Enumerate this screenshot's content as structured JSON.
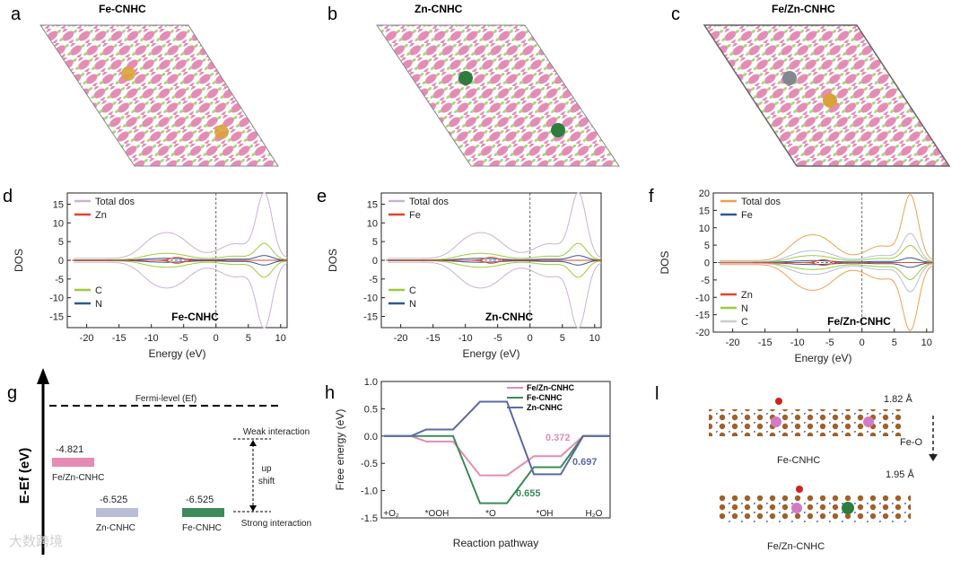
{
  "panels": {
    "a": {
      "label": "a",
      "title": "Fe-CNHC"
    },
    "b": {
      "label": "b",
      "title": "Zn-CNHC"
    },
    "c": {
      "label": "c",
      "title": "Fe/Zn-CNHC"
    },
    "l_label": "l",
    "l_top": "Fe-CNHC",
    "l_bottom": "Fe/Zn-CNHC",
    "l_dist1": "1.82 Å",
    "l_dist2": "1.95 Å",
    "l_feo": "Fe-O",
    "watermark": "大数跨境"
  },
  "chart_data": [
    {
      "id": "d",
      "type": "line",
      "panel": "d",
      "title": "Fe-CNHC",
      "xlabel": "Energy (eV)",
      "ylabel": "DOS",
      "xlim": [
        -23,
        11
      ],
      "ylim": [
        -18,
        18
      ],
      "xticks": [
        -20,
        -15,
        -10,
        -5,
        0,
        5,
        10
      ],
      "yticks": [
        -15,
        -10,
        -5,
        0,
        5,
        10,
        15
      ],
      "legend": [
        "Total dos",
        "Zn",
        "C",
        "N"
      ],
      "legend_colors": [
        "#c9b2d6",
        "#e0442b",
        "#9ccc3c",
        "#2f5a8c"
      ]
    },
    {
      "id": "e",
      "type": "line",
      "panel": "e",
      "title": "Zn-CNHC",
      "xlabel": "Energy (eV)",
      "ylabel": "DOS",
      "xlim": [
        -23,
        11
      ],
      "ylim": [
        -18,
        18
      ],
      "xticks": [
        -20,
        -15,
        -10,
        -5,
        0,
        5,
        10
      ],
      "yticks": [
        -15,
        -10,
        -5,
        0,
        5,
        10,
        15
      ],
      "legend": [
        "Total dos",
        "Fe",
        "C",
        "N"
      ],
      "legend_colors": [
        "#c9b2d6",
        "#e0442b",
        "#9ccc3c",
        "#2f5a8c"
      ]
    },
    {
      "id": "f",
      "type": "line",
      "panel": "f",
      "title": "Fe/Zn-CNHC",
      "xlabel": "Energy (eV)",
      "ylabel": "DOS",
      "xlim": [
        -23,
        11
      ],
      "ylim": [
        -20,
        20
      ],
      "xticks": [
        -20,
        -15,
        -10,
        -5,
        0,
        5,
        10
      ],
      "yticks": [
        -20,
        -15,
        -10,
        -5,
        0,
        5,
        10,
        15,
        20
      ],
      "legend": [
        "Total dos",
        "Fe",
        "Zn",
        "N",
        "C"
      ],
      "legend_colors": [
        "#f0a050",
        "#2f5a8c",
        "#e0442b",
        "#9ccc3c",
        "#cccccc"
      ]
    },
    {
      "id": "g",
      "type": "bar",
      "panel": "g",
      "ylabel": "E-Ef (eV)",
      "fermi_label": "Fermi-level (Ef)",
      "categories": [
        "Fe/Zn-CNHC",
        "Zn-CNHC",
        "Fe-CNHC"
      ],
      "values": [
        -4.821,
        -6.525,
        -6.525
      ],
      "value_labels": [
        "-4.821",
        "-6.525",
        "-6.525"
      ],
      "colors": [
        "#e58cb5",
        "#b9bdd6",
        "#3d8a5a"
      ],
      "annotations": {
        "weak": "Weak interaction",
        "strong": "Strong interaction",
        "shift": "up\nshift"
      }
    },
    {
      "id": "h",
      "type": "line",
      "panel": "h",
      "xlabel": "Reaction pathway",
      "ylabel": "Free energy (eV)",
      "ylim": [
        -1.5,
        1.0
      ],
      "yticks": [
        -1.5,
        -1.0,
        -0.5,
        0.0,
        0.5,
        1.0
      ],
      "ytick_labels": [
        "-1.5",
        "-1.0",
        "-0.5",
        "0.0",
        "0.5",
        "1.0"
      ],
      "categories": [
        "+O2",
        "*OOH",
        "*O",
        "*OH",
        "H2O"
      ],
      "series": [
        {
          "name": "Fe/Zn-CNHC",
          "color": "#e58cb5",
          "values": [
            0.0,
            -0.1,
            -0.72,
            -0.37,
            0.0
          ]
        },
        {
          "name": "Fe-CNHC",
          "color": "#3d8a5a",
          "values": [
            0.0,
            0.0,
            -1.23,
            -0.57,
            0.0
          ]
        },
        {
          "name": "Zn-CNHC",
          "color": "#5b6aa8",
          "values": [
            0.0,
            0.12,
            0.63,
            -0.7,
            0.0
          ]
        }
      ],
      "data_labels": [
        {
          "text": "0.372",
          "color": "#e58cb5"
        },
        {
          "text": "0.655",
          "color": "#3d8a5a"
        },
        {
          "text": "0.697",
          "color": "#5b6aa8"
        }
      ]
    }
  ]
}
